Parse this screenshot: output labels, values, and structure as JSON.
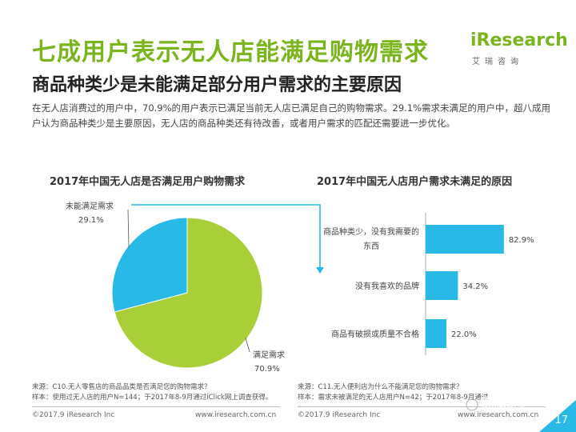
{
  "header": {
    "title": "七成用户表示无人店能满足购物需求",
    "subtitle": "商品种类少是未能满足部分用户需求的主要原因",
    "logo_text": "iResearch",
    "logo_cn": "艾瑞咨询"
  },
  "description": "在无人店消费过的用户中，70.9%的用户表示已满足当前无人店已满足自己的购物需求。29.1%需求未满足的用户中，超八成用户认为商品种类少是主要原因，无人店的商品种类还有待改善，或者用户需求的匹配还需要进一步优化。",
  "colors": {
    "accent_green": "#7ab51d",
    "pie_green": "#a9cf38",
    "pie_blue": "#29b9e6",
    "bar_blue": "#29b9e6"
  },
  "chart_data": [
    {
      "type": "pie",
      "title": "2017年中国无人店是否满足用户购物需求",
      "slices": [
        {
          "label": "满足需求",
          "value": 70.9,
          "value_label": "70.9%",
          "color": "#a9cf38"
        },
        {
          "label": "未能满足需求",
          "value": 29.1,
          "value_label": "29.1%",
          "color": "#29b9e6"
        }
      ]
    },
    {
      "type": "bar",
      "orientation": "horizontal",
      "title": "2017年中国无人店用户需求未满足的原因",
      "categories": [
        "商品种类少，没有我需要的东西",
        "没有我喜欢的品牌",
        "商品有破损或质量不合格"
      ],
      "values": [
        82.9,
        34.2,
        22.0
      ],
      "value_labels": [
        "82.9%",
        "34.2%",
        "22.0%"
      ],
      "xlim": [
        0,
        100
      ]
    }
  ],
  "sources": {
    "left_line1": "来源：C10.无人零售店的商品品类是否满足您的购物需求？",
    "left_line2": "样本：使用过无人店的用户N=144；于2017年8-9月通过iClick网上调查获得。",
    "right_line1": "来源：C11.无人便利店为什么不能满足您的购物需求？",
    "right_line2": "样本：需求未被满足的无人店用户N=42；于2017年8-9月通过"
  },
  "footer": {
    "left_copyright": "©2017.9 iResearch Inc",
    "left_url": "www.iresearch.com.cn",
    "right_copyright": "©2017.9 iResearch Inc",
    "right_url": "www.iresearch.com.cn",
    "page_number": "17",
    "watermark": "物流指闻"
  }
}
